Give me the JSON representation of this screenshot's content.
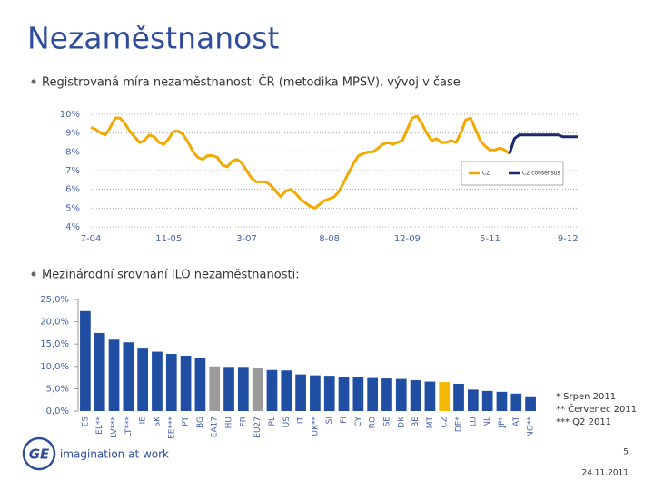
{
  "title": "Nezaměstnanost",
  "bullets": [
    "Registrovaná míra nezaměstnanosti ČR (metodika MPSV), vývoj v čase",
    "Mezinárodní srovnání ILO nezaměstnanosti:"
  ],
  "chart_data": [
    {
      "type": "line",
      "categories": [
        "7-04",
        null,
        null,
        null,
        null,
        null,
        null,
        null,
        null,
        null,
        null,
        null,
        null,
        null,
        null,
        null,
        "11-05",
        null,
        null,
        null,
        null,
        null,
        null,
        null,
        null,
        null,
        null,
        null,
        null,
        null,
        null,
        null,
        "3-07",
        null,
        null,
        null,
        null,
        null,
        null,
        null,
        null,
        null,
        null,
        null,
        null,
        null,
        null,
        null,
        null,
        "8-08",
        null,
        null,
        null,
        null,
        null,
        null,
        null,
        null,
        null,
        null,
        null,
        null,
        null,
        null,
        null,
        "12-09",
        null,
        null,
        null,
        null,
        null,
        null,
        null,
        null,
        null,
        null,
        null,
        null,
        null,
        null,
        null,
        null,
        "5-11",
        null,
        null,
        null,
        null,
        null,
        null,
        null,
        null,
        null,
        null,
        null,
        null,
        null,
        null,
        null,
        "9-12",
        null,
        null
      ],
      "series": [
        {
          "name": "CZ",
          "color": "#f2a900",
          "values": [
            9.3,
            9.2,
            9.0,
            8.9,
            9.3,
            9.8,
            9.8,
            9.5,
            9.1,
            8.8,
            8.5,
            8.6,
            8.9,
            8.8,
            8.5,
            8.4,
            8.7,
            9.1,
            9.1,
            8.9,
            8.5,
            8.0,
            7.7,
            7.6,
            7.8,
            7.8,
            7.7,
            7.3,
            7.2,
            7.5,
            7.6,
            7.4,
            7.0,
            6.6,
            6.4,
            6.4,
            6.4,
            6.2,
            5.9,
            5.6,
            5.9,
            6.0,
            5.8,
            5.5,
            5.3,
            5.1,
            5.0,
            5.2,
            5.4,
            5.5,
            5.6,
            5.9,
            6.4,
            6.9,
            7.4,
            7.8,
            7.9,
            8.0,
            8.0,
            8.2,
            8.4,
            8.5,
            8.4,
            8.5,
            8.6,
            9.2,
            9.8,
            9.9,
            9.5,
            9.0,
            8.6,
            8.7,
            8.5,
            8.5,
            8.6,
            8.5,
            9.0,
            9.7,
            9.8,
            9.2,
            8.6,
            8.3,
            8.1,
            8.1,
            8.2,
            8.1,
            7.9,
            null,
            null,
            null,
            null,
            null,
            null,
            null,
            null,
            null,
            null,
            null,
            null,
            null,
            null
          ]
        },
        {
          "name": "CZ consensus",
          "color": "#1a2a6c",
          "values": [
            null,
            null,
            null,
            null,
            null,
            null,
            null,
            null,
            null,
            null,
            null,
            null,
            null,
            null,
            null,
            null,
            null,
            null,
            null,
            null,
            null,
            null,
            null,
            null,
            null,
            null,
            null,
            null,
            null,
            null,
            null,
            null,
            null,
            null,
            null,
            null,
            null,
            null,
            null,
            null,
            null,
            null,
            null,
            null,
            null,
            null,
            null,
            null,
            null,
            null,
            null,
            null,
            null,
            null,
            null,
            null,
            null,
            null,
            null,
            null,
            null,
            null,
            null,
            null,
            null,
            null,
            null,
            null,
            null,
            null,
            null,
            null,
            null,
            null,
            null,
            null,
            null,
            null,
            null,
            null,
            null,
            null,
            null,
            null,
            null,
            null,
            7.9,
            8.7,
            8.9,
            8.9,
            8.9,
            8.9,
            8.9,
            8.9,
            8.9,
            8.9,
            8.9,
            8.8,
            8.8,
            8.8,
            8.8
          ]
        }
      ],
      "ylim": [
        4,
        10
      ],
      "yticks": [
        {
          "value": 4,
          "label": "4%"
        },
        {
          "value": 5,
          "label": "5%"
        },
        {
          "value": 6,
          "label": "6%"
        },
        {
          "value": 7,
          "label": "7%"
        },
        {
          "value": 8,
          "label": "8%"
        },
        {
          "value": 9,
          "label": "9%"
        },
        {
          "value": 10,
          "label": "10%"
        }
      ],
      "grid": true,
      "legend": "right"
    },
    {
      "type": "bar",
      "categories": [
        "ES",
        "EL**",
        "LV***",
        "LT***",
        "IE",
        "SK",
        "EE***",
        "PT",
        "BG",
        "EA17",
        "HU",
        "FR",
        "EU27",
        "PL",
        "US",
        "IT",
        "UK**",
        "SI",
        "FI",
        "CY",
        "RO",
        "SE",
        "DK",
        "BE",
        "MT",
        "CZ",
        "DE*",
        "LU",
        "NL",
        "JP*",
        "AT",
        "NO**"
      ],
      "values": [
        22.4,
        17.5,
        16.0,
        15.4,
        14.0,
        13.3,
        12.8,
        12.4,
        12.0,
        10.0,
        9.9,
        9.9,
        9.6,
        9.2,
        9.1,
        8.2,
        8.0,
        7.9,
        7.6,
        7.6,
        7.4,
        7.3,
        7.2,
        6.9,
        6.6,
        6.5,
        6.1,
        4.8,
        4.5,
        4.3,
        3.9,
        3.3
      ],
      "colors": [
        "#1f4ea3",
        "#1f4ea3",
        "#1f4ea3",
        "#1f4ea3",
        "#1f4ea3",
        "#1f4ea3",
        "#1f4ea3",
        "#1f4ea3",
        "#1f4ea3",
        "#9b9b9b",
        "#1f4ea3",
        "#1f4ea3",
        "#9b9b9b",
        "#1f4ea3",
        "#1f4ea3",
        "#1f4ea3",
        "#1f4ea3",
        "#1f4ea3",
        "#1f4ea3",
        "#1f4ea3",
        "#1f4ea3",
        "#1f4ea3",
        "#1f4ea3",
        "#1f4ea3",
        "#1f4ea3",
        "#f5b800",
        "#1f4ea3",
        "#1f4ea3",
        "#1f4ea3",
        "#1f4ea3",
        "#1f4ea3",
        "#1f4ea3"
      ],
      "ylim": [
        0,
        25
      ],
      "yticks": [
        {
          "value": 0,
          "label": "0,0%"
        },
        {
          "value": 5,
          "label": "5,0%"
        },
        {
          "value": 10,
          "label": "10,0%"
        },
        {
          "value": 15,
          "label": "15,0%"
        },
        {
          "value": 20,
          "label": "20,0%"
        },
        {
          "value": 25,
          "label": "25,0%"
        }
      ],
      "grid": false
    }
  ],
  "footnotes": [
    "*   Srpen 2011",
    "**  Červenec 2011",
    "*** Q2 2011"
  ],
  "footer": {
    "logo": "GE",
    "tagline": "imagination at work",
    "page": "5",
    "date": "24.11.2011"
  }
}
